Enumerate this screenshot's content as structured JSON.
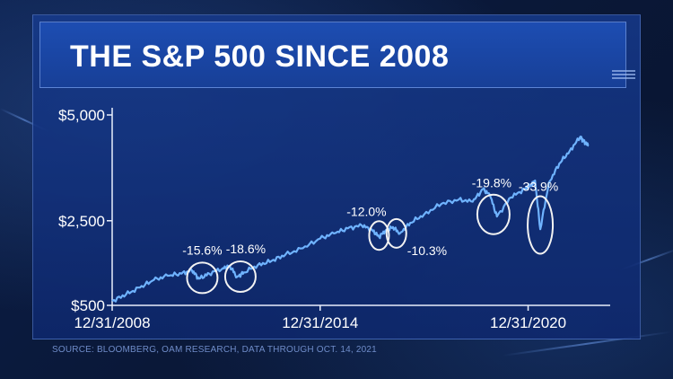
{
  "title": "THE S&P 500 SINCE 2008",
  "source": "SOURCE: BLOOMBERG, OAM RESEARCH, DATA THROUGH OCT. 14, 2021",
  "colors": {
    "line": "#6fb3ff",
    "circle": "#f2f2f2",
    "panel": "#163f97"
  },
  "chart_data": {
    "type": "line",
    "title": "THE S&P 500 SINCE 2008",
    "y_ticks": [
      {
        "value": 500,
        "label": "$500"
      },
      {
        "value": 2500,
        "label": "$2,500"
      },
      {
        "value": 5000,
        "label": "$5,000"
      }
    ],
    "x_ticks": [
      {
        "value": 2008.0,
        "label": "12/31/2008"
      },
      {
        "value": 2014.0,
        "label": "12/31/2014"
      },
      {
        "value": 2020.0,
        "label": "12/31/2020"
      }
    ],
    "xlim": [
      2008.0,
      2021.85
    ],
    "ylim": [
      500,
      5000
    ],
    "series": [
      {
        "x": [
          2008.0,
          2008.4,
          2008.8,
          2009.2,
          2009.6,
          2010.0,
          2010.3,
          2010.5,
          2010.8,
          2011.2,
          2011.4,
          2011.6,
          2011.8,
          2012.2,
          2012.6,
          2013.0,
          2013.5,
          2014.0,
          2014.4,
          2014.8,
          2015.2,
          2015.5,
          2015.7,
          2015.9,
          2016.1,
          2016.3,
          2016.6,
          2017.0,
          2017.5,
          2018.0,
          2018.4,
          2018.7,
          2018.9,
          2019.1,
          2019.5,
          2019.9,
          2020.1,
          2020.2,
          2020.35,
          2020.6,
          2020.9,
          2021.2,
          2021.5,
          2021.6,
          2021.75
        ],
        "y": [
          600,
          760,
          920,
          1100,
          1200,
          1250,
          1330,
          1130,
          1250,
          1380,
          1430,
          1170,
          1280,
          1450,
          1550,
          1700,
          1850,
          2080,
          2200,
          2320,
          2390,
          2280,
          2120,
          2280,
          2350,
          2200,
          2450,
          2650,
          2900,
          3000,
          2950,
          3250,
          3100,
          2600,
          3050,
          3250,
          3350,
          3450,
          2300,
          3400,
          3850,
          4150,
          4480,
          4380,
          4270
        ]
      }
    ],
    "annotations": [
      {
        "label": "-15.6%",
        "x": 2010.6,
        "y": 1150
      },
      {
        "label": "-18.6%",
        "x": 2011.7,
        "y": 1180
      },
      {
        "label": "-12.0%",
        "x": 2015.7,
        "y": 2150
      },
      {
        "label": "-10.3%",
        "x": 2016.2,
        "y": 2200
      },
      {
        "label": "-19.8%",
        "x": 2019.0,
        "y": 2650
      },
      {
        "label": "-33.9%",
        "x": 2020.35,
        "y": 2400
      }
    ]
  }
}
